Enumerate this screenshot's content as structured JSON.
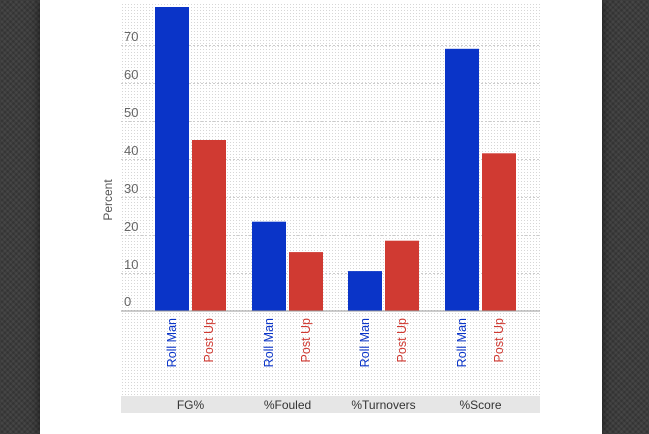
{
  "chart_data": {
    "type": "bar",
    "ylabel": "Percent",
    "ylim": [
      0,
      80
    ],
    "yticks": [
      0,
      10,
      20,
      30,
      40,
      50,
      60,
      70
    ],
    "grid": true,
    "categories": [
      "FG%",
      "%Fouled",
      "%Turnovers",
      "%Score"
    ],
    "series": [
      {
        "name": "Roll Man",
        "color": "#0a34c8",
        "values": [
          80,
          23.5,
          10.5,
          69
        ]
      },
      {
        "name": "Post Up",
        "color": "#d03a32",
        "values": [
          45,
          15.5,
          18.5,
          41.5
        ]
      }
    ]
  }
}
